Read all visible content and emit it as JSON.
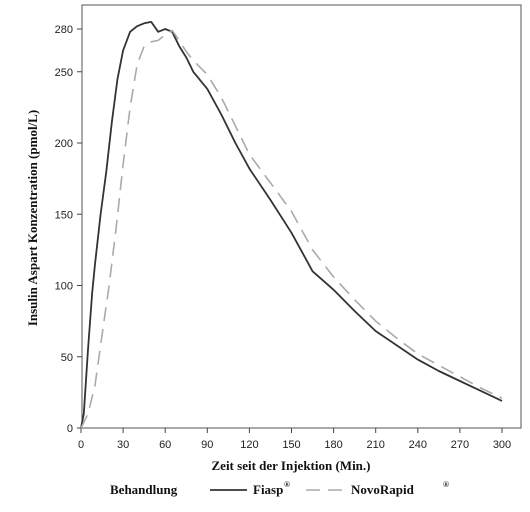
{
  "chart_data": {
    "type": "line",
    "xlabel": "Zeit seit der Injektion (Min.)",
    "ylabel": "Insulin Aspart Konzentration (pmol/L)",
    "xlim": [
      0,
      300
    ],
    "ylim": [
      0,
      290
    ],
    "xticks": [
      0,
      30,
      60,
      90,
      120,
      150,
      180,
      210,
      240,
      270,
      300
    ],
    "yticks": [
      0,
      50,
      100,
      150,
      200,
      250,
      280
    ],
    "grid": false,
    "legend": {
      "placement": "bottom",
      "title": "Behandlung",
      "entries": [
        {
          "name": "Fiasp",
          "sup": "®",
          "color": "#333333",
          "dash": "solid"
        },
        {
          "name": "NovoRapid",
          "sup": "®",
          "color": "#aaaaaa",
          "dash": "dashed"
        }
      ]
    },
    "series": [
      {
        "name": "Fiasp®",
        "color": "#333333",
        "points": [
          [
            0,
            0
          ],
          [
            2,
            10
          ],
          [
            5,
            55
          ],
          [
            8,
            95
          ],
          [
            10,
            115
          ],
          [
            14,
            150
          ],
          [
            18,
            180
          ],
          [
            22,
            215
          ],
          [
            26,
            245
          ],
          [
            30,
            265
          ],
          [
            35,
            278
          ],
          [
            40,
            282
          ],
          [
            45,
            284
          ],
          [
            50,
            285
          ],
          [
            55,
            278
          ],
          [
            60,
            280
          ],
          [
            65,
            278
          ],
          [
            70,
            268
          ],
          [
            75,
            260
          ],
          [
            80,
            250
          ],
          [
            90,
            238
          ],
          [
            100,
            220
          ],
          [
            110,
            200
          ],
          [
            120,
            182
          ],
          [
            135,
            160
          ],
          [
            150,
            137
          ],
          [
            165,
            110
          ],
          [
            180,
            97
          ],
          [
            195,
            82
          ],
          [
            210,
            68
          ],
          [
            225,
            58
          ],
          [
            240,
            48
          ],
          [
            255,
            40
          ],
          [
            270,
            33
          ],
          [
            285,
            26
          ],
          [
            300,
            19
          ]
        ]
      },
      {
        "name": "NovoRapid®",
        "color": "#aaaaaa",
        "points": [
          [
            0,
            0
          ],
          [
            5,
            10
          ],
          [
            10,
            30
          ],
          [
            15,
            65
          ],
          [
            20,
            100
          ],
          [
            25,
            140
          ],
          [
            30,
            185
          ],
          [
            35,
            225
          ],
          [
            40,
            255
          ],
          [
            45,
            268
          ],
          [
            50,
            271
          ],
          [
            55,
            272
          ],
          [
            60,
            276
          ],
          [
            65,
            279
          ],
          [
            70,
            272
          ],
          [
            75,
            264
          ],
          [
            80,
            258
          ],
          [
            90,
            248
          ],
          [
            100,
            232
          ],
          [
            110,
            212
          ],
          [
            120,
            192
          ],
          [
            135,
            172
          ],
          [
            150,
            152
          ],
          [
            165,
            125
          ],
          [
            180,
            106
          ],
          [
            195,
            90
          ],
          [
            210,
            75
          ],
          [
            225,
            63
          ],
          [
            240,
            52
          ],
          [
            255,
            44
          ],
          [
            270,
            36
          ],
          [
            285,
            28
          ],
          [
            300,
            21
          ]
        ]
      }
    ]
  }
}
